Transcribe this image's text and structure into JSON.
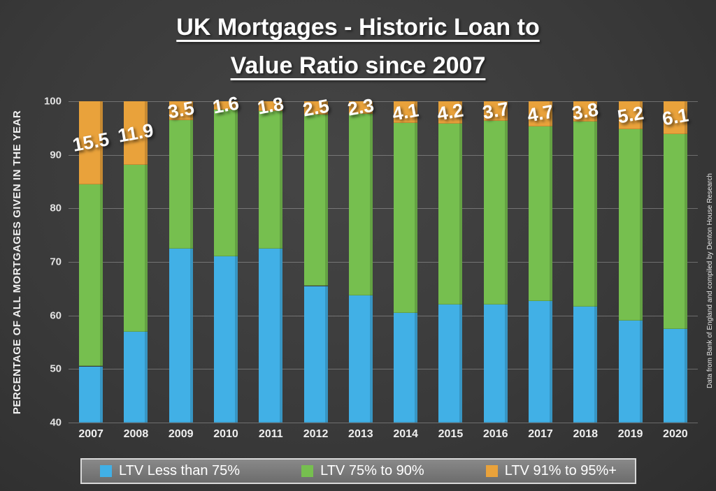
{
  "title": {
    "line1": "UK Mortgages - Historic Loan to",
    "line2": "Value Ratio since 2007"
  },
  "credit": "Data from Bank of England and compiled by Denton House Research",
  "colors": {
    "background": "#3b3b3b",
    "blue": "#41B0E6",
    "green": "#76BF4F",
    "orange": "#E9A23B",
    "gridline": "rgba(255,255,255,0.28)",
    "text": "#ffffff"
  },
  "chart_data": {
    "type": "bar",
    "stacked": true,
    "title": "UK Mortgages - Historic Loan to Value Ratio since 2007",
    "ylabel": "PERCENTAGE OF ALL MORTGAGES GIVEN IN THE YEAR",
    "xlabel": "",
    "ylim": [
      40,
      100
    ],
    "yticks": [
      40,
      50,
      60,
      70,
      80,
      90,
      100
    ],
    "grid": true,
    "legend_position": "bottom",
    "categories": [
      "2007",
      "2008",
      "2009",
      "2010",
      "2011",
      "2012",
      "2013",
      "2014",
      "2015",
      "2016",
      "2017",
      "2018",
      "2019",
      "2020"
    ],
    "series": [
      {
        "name": "LTV Less than 75%",
        "color": "#41B0E6",
        "values": [
          50.5,
          57.0,
          72.5,
          71.0,
          72.5,
          65.5,
          63.7,
          60.5,
          62.0,
          62.0,
          62.7,
          61.7,
          59.0,
          57.5
        ]
      },
      {
        "name": "LTV 75% to 90%",
        "color": "#76BF4F",
        "values": [
          34.0,
          31.1,
          24.0,
          27.4,
          25.7,
          32.0,
          34.0,
          35.4,
          33.8,
          34.3,
          32.6,
          34.5,
          35.8,
          36.4
        ]
      },
      {
        "name": "LTV 91% to 95%+",
        "color": "#E9A23B",
        "values": [
          15.5,
          11.9,
          3.5,
          1.6,
          1.8,
          2.5,
          2.3,
          4.1,
          4.2,
          3.7,
          4.7,
          3.8,
          5.2,
          6.1
        ]
      }
    ],
    "data_labels": [
      "15.5",
      "11.9",
      "3.5",
      "1.6",
      "1.8",
      "2.5",
      "2.3",
      "4.1",
      "4.2",
      "3.7",
      "4.7",
      "3.8",
      "5.2",
      "6.1"
    ]
  }
}
